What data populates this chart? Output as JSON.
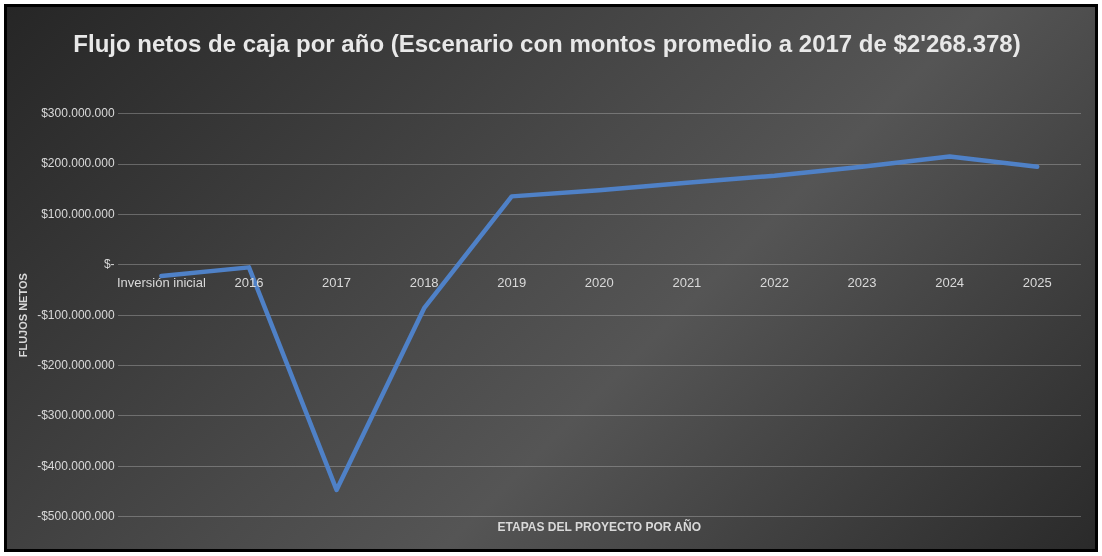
{
  "chart_data": {
    "type": "line",
    "title": "Flujo netos de caja por año (Escenario con montos promedio a 2017 de $2'268.378)",
    "xlabel": "ETAPAS DEL PROYECTO POR AÑO",
    "ylabel": "FLUJOS NETOS",
    "categories": [
      "Inversión inicial",
      "2016",
      "2017",
      "2018",
      "2019",
      "2020",
      "2021",
      "2022",
      "2023",
      "2024",
      "2025"
    ],
    "series": [
      {
        "color": "#4f81c7",
        "values": [
          -22000000,
          -5000000,
          -447000000,
          -86000000,
          136000000,
          148000000,
          163000000,
          177000000,
          195000000,
          215000000,
          195000000
        ]
      }
    ],
    "ylim": [
      -500000000,
      300000000
    ],
    "yticks": [
      {
        "value": 300000000,
        "label": "$300.000.000"
      },
      {
        "value": 200000000,
        "label": "$200.000.000"
      },
      {
        "value": 100000000,
        "label": "$100.000.000"
      },
      {
        "value": 0,
        "label": "$-"
      },
      {
        "value": -100000000,
        "label": "-$100.000.000"
      },
      {
        "value": -200000000,
        "label": "-$200.000.000"
      },
      {
        "value": -300000000,
        "label": "-$300.000.000"
      },
      {
        "value": -400000000,
        "label": "-$400.000.000"
      },
      {
        "value": -500000000,
        "label": "-$500.000.000"
      }
    ],
    "grid": "y",
    "legend": false,
    "marker": "none",
    "line_style": "solid"
  }
}
